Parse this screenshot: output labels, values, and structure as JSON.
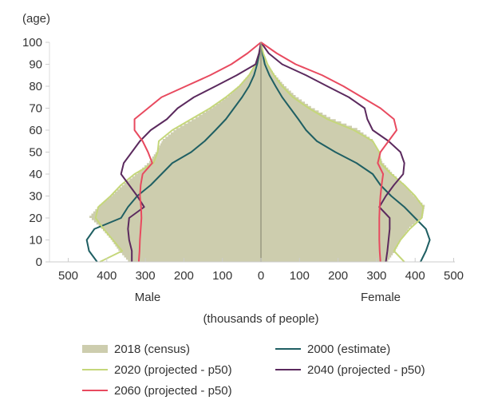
{
  "chart_data": {
    "type": "population-pyramid",
    "ylabel": "(age)",
    "xlabel": "(thousands of people)",
    "left_label": "Male",
    "right_label": "Female",
    "xlim": [
      0,
      500
    ],
    "ylim": [
      0,
      100
    ],
    "x_ticks": [
      "500",
      "400",
      "300",
      "200",
      "100",
      "0",
      "100",
      "200",
      "300",
      "400",
      "500"
    ],
    "y_ticks": [
      "0",
      "10",
      "20",
      "30",
      "40",
      "50",
      "60",
      "70",
      "80",
      "90",
      "100"
    ],
    "ages": [
      0,
      5,
      10,
      15,
      20,
      25,
      30,
      35,
      40,
      45,
      50,
      55,
      60,
      65,
      70,
      75,
      80,
      85,
      90,
      95,
      100
    ],
    "series": [
      {
        "name": "2018 (census)",
        "kind": "area",
        "color": "#cdcdae",
        "male": [
          345,
          370,
          390,
          415,
          445,
          420,
          385,
          355,
          320,
          290,
          270,
          255,
          220,
          170,
          125,
          85,
          55,
          30,
          12,
          3,
          0
        ],
        "female": [
          330,
          350,
          365,
          385,
          420,
          425,
          395,
          370,
          340,
          315,
          305,
          290,
          250,
          180,
          130,
          90,
          60,
          35,
          15,
          4,
          0
        ]
      },
      {
        "name": "2000 (estimate)",
        "kind": "line",
        "color": "#1f5f63",
        "male": [
          425,
          446,
          452,
          432,
          363,
          345,
          321,
          286,
          258,
          230,
          181,
          146,
          118,
          91,
          70,
          49,
          31,
          18,
          10,
          4,
          0
        ],
        "female": [
          414,
          428,
          438,
          428,
          400,
          372,
          338,
          310,
          290,
          248,
          193,
          145,
          117,
          97,
          76,
          55,
          38,
          22,
          10,
          4,
          0
        ]
      },
      {
        "name": "2020 (projected - p50)",
        "kind": "line",
        "color": "#c5d77a",
        "male": [
          418,
          360,
          384,
          408,
          429,
          422,
          390,
          363,
          328,
          279,
          268,
          265,
          230,
          181,
          132,
          91,
          56,
          31,
          14,
          5,
          0
        ],
        "female": [
          372,
          345,
          362,
          386,
          417,
          421,
          400,
          372,
          338,
          310,
          307,
          290,
          241,
          172,
          124,
          83,
          55,
          34,
          17,
          6,
          0
        ]
      },
      {
        "name": "2040 (projected - p50)",
        "kind": "line",
        "color": "#5b2a5e",
        "male": [
          335,
          335,
          342,
          345,
          342,
          303,
          321,
          342,
          363,
          356,
          335,
          314,
          286,
          244,
          216,
          174,
          118,
          63,
          14,
          5,
          0
        ],
        "female": [
          324,
          328,
          331,
          334,
          334,
          307,
          324,
          345,
          369,
          372,
          362,
          331,
          290,
          276,
          269,
          228,
          172,
          117,
          55,
          20,
          0
        ]
      },
      {
        "name": "2060 (projected - p50)",
        "kind": "line",
        "color": "#e84a5f",
        "male": [
          317,
          315,
          314,
          312,
          310,
          311,
          314,
          312,
          307,
          282,
          293,
          307,
          328,
          328,
          293,
          258,
          195,
          132,
          77,
          35,
          0
        ],
        "female": [
          310,
          308,
          307,
          307,
          307,
          308,
          310,
          313,
          317,
          303,
          310,
          331,
          352,
          345,
          310,
          262,
          214,
          159,
          90,
          41,
          0
        ]
      }
    ],
    "legend_order": [
      0,
      1,
      2,
      3,
      4
    ],
    "legend_position": "bottom",
    "grid": false
  }
}
